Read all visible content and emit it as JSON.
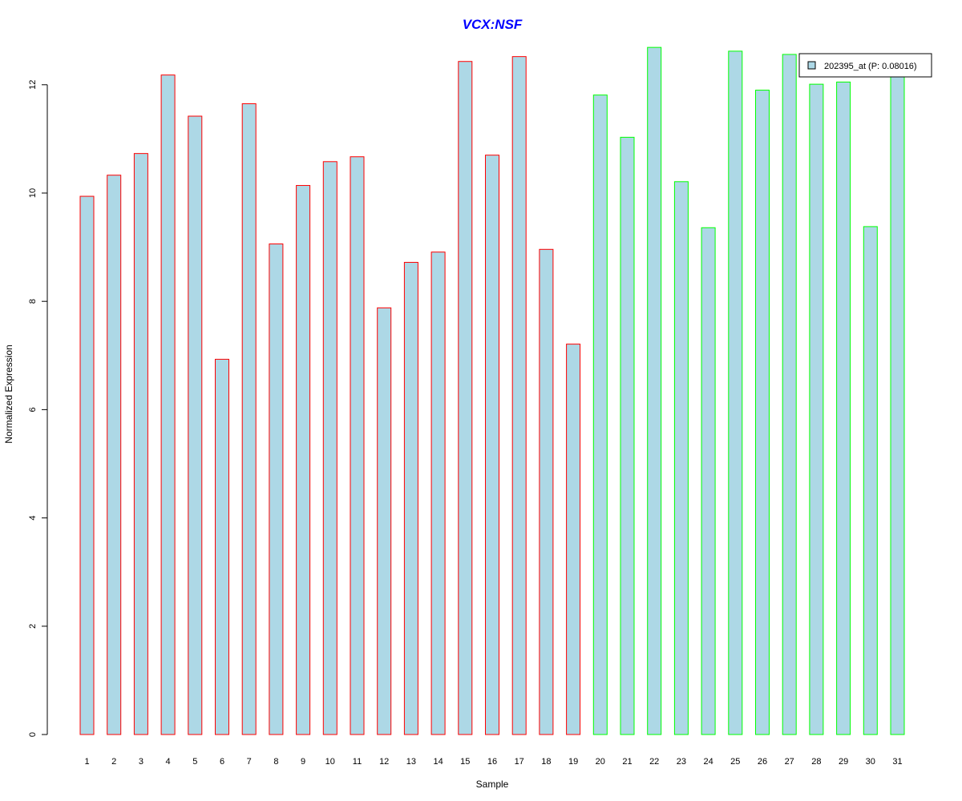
{
  "chart_data": {
    "type": "bar",
    "title": "VCX:NSF",
    "title_color": "#0000ff",
    "xlabel": "Sample",
    "ylabel": "Normalized Expression",
    "categories": [
      "1",
      "2",
      "3",
      "4",
      "5",
      "6",
      "7",
      "8",
      "9",
      "10",
      "11",
      "12",
      "13",
      "14",
      "15",
      "16",
      "17",
      "18",
      "19",
      "20",
      "21",
      "22",
      "23",
      "24",
      "25",
      "26",
      "27",
      "28",
      "29",
      "30",
      "31"
    ],
    "series": [
      {
        "name": "202395_at (P: 0.08016)",
        "values": [
          9.94,
          10.33,
          10.73,
          12.18,
          11.42,
          6.93,
          11.65,
          9.06,
          10.14,
          10.58,
          10.67,
          7.88,
          8.72,
          8.91,
          12.43,
          10.7,
          12.52,
          8.96,
          7.21,
          11.81,
          11.03,
          12.69,
          10.21,
          9.36,
          12.62,
          11.9,
          12.56,
          12.01,
          12.05,
          9.38,
          12.19
        ]
      }
    ],
    "group_border_colors": [
      "#ff0000",
      "#ff0000",
      "#ff0000",
      "#ff0000",
      "#ff0000",
      "#ff0000",
      "#ff0000",
      "#ff0000",
      "#ff0000",
      "#ff0000",
      "#ff0000",
      "#ff0000",
      "#ff0000",
      "#ff0000",
      "#ff0000",
      "#ff0000",
      "#ff0000",
      "#ff0000",
      "#ff0000",
      "#00ff00",
      "#00ff00",
      "#00ff00",
      "#00ff00",
      "#00ff00",
      "#00ff00",
      "#00ff00",
      "#00ff00",
      "#00ff00",
      "#00ff00",
      "#00ff00",
      "#00ff00"
    ],
    "bar_fill": "#add8e6",
    "yticks": [
      0,
      2,
      4,
      6,
      8,
      10,
      12
    ],
    "ylim": [
      0,
      12.69
    ],
    "grid": false,
    "legend_position": "top-right"
  }
}
